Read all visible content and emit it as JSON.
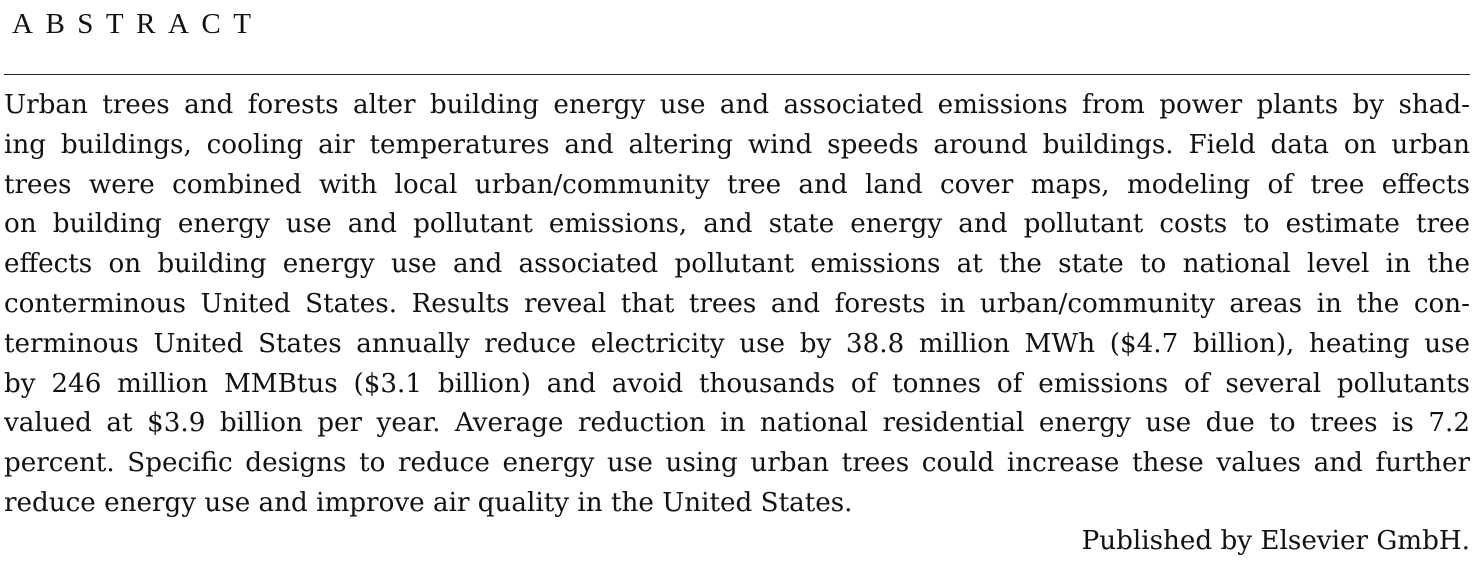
{
  "section": {
    "heading": "ABSTRACT"
  },
  "abstract": {
    "lines": [
      "Urban trees and forests alter building energy use and associated emissions from power plants by shad-",
      "ing buildings, cooling air temperatures and altering wind speeds around buildings. Field data on urban",
      "trees were combined with local urban/community tree and land cover maps, modeling of tree effects",
      "on building energy use and pollutant emissions, and state energy and pollutant costs to estimate tree",
      "effects on building energy use and associated pollutant emissions at the state to national level in the",
      "conterminous United States. Results reveal that trees and forests in urban/community areas in the con-",
      "terminous United States annually reduce electricity use by 38.8 million MWh ($4.7 billion), heating use",
      "by 246 million MMBtus ($3.1 billion) and avoid thousands of tonnes of emissions of several pollutants",
      "valued at $3.9 billion per year. Average reduction in national residential energy use due to trees is 7.2",
      "percent. Specific designs to reduce energy use using urban trees could increase these values and further",
      "reduce energy use and improve air quality in the United States."
    ],
    "publisher": "Published by Elsevier GmbH."
  }
}
